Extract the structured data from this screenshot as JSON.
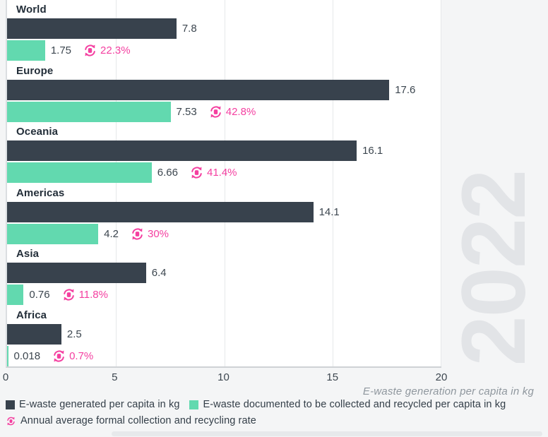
{
  "chart_data": {
    "type": "bar",
    "orientation": "horizontal",
    "watermark": "2022",
    "xlabel": "E-waste generation per capita in kg",
    "xlim": [
      0,
      20
    ],
    "x_tick_labels": [
      "0",
      "5",
      "10",
      "15",
      "20"
    ],
    "grid": "vertical gridlines at each tick",
    "legend_position": "bottom-left",
    "categories": [
      "World",
      "Europe",
      "Oceania",
      "Americas",
      "Asia",
      "Africa"
    ],
    "series": [
      {
        "name": "E-waste generated per capita in kg",
        "color": "#38424d",
        "values": [
          7.8,
          17.6,
          16.1,
          14.1,
          6.4,
          2.5
        ],
        "labels": [
          "7.8",
          "17.6",
          "16.1",
          "14.1",
          "6.4",
          "2.5"
        ]
      },
      {
        "name": "E-waste documented to be collected and recycled per capita in kg",
        "color": "#62d9af",
        "values": [
          1.75,
          7.53,
          6.66,
          4.2,
          0.76,
          0.018
        ],
        "labels": [
          "1.75",
          "7.53",
          "6.66",
          "4.2",
          "0.76",
          "0.018"
        ]
      }
    ],
    "rates": {
      "name": "Annual average formal collection and recycling rate",
      "color": "#f43fa0",
      "values": [
        22.3,
        42.8,
        41.4,
        30,
        11.8,
        0.7
      ],
      "labels": [
        "22.3%",
        "42.8%",
        "41.4%",
        "30%",
        "11.8%",
        "0.7%"
      ]
    }
  },
  "colors": {
    "background": "#f4f5f6",
    "plot_background": "#ffffff",
    "gridline": "#e6e8ea",
    "watermark": "#e2e4e7",
    "text_dark": "#232e39",
    "text_value": "#3c464f",
    "axis_title": "#8f979e"
  }
}
